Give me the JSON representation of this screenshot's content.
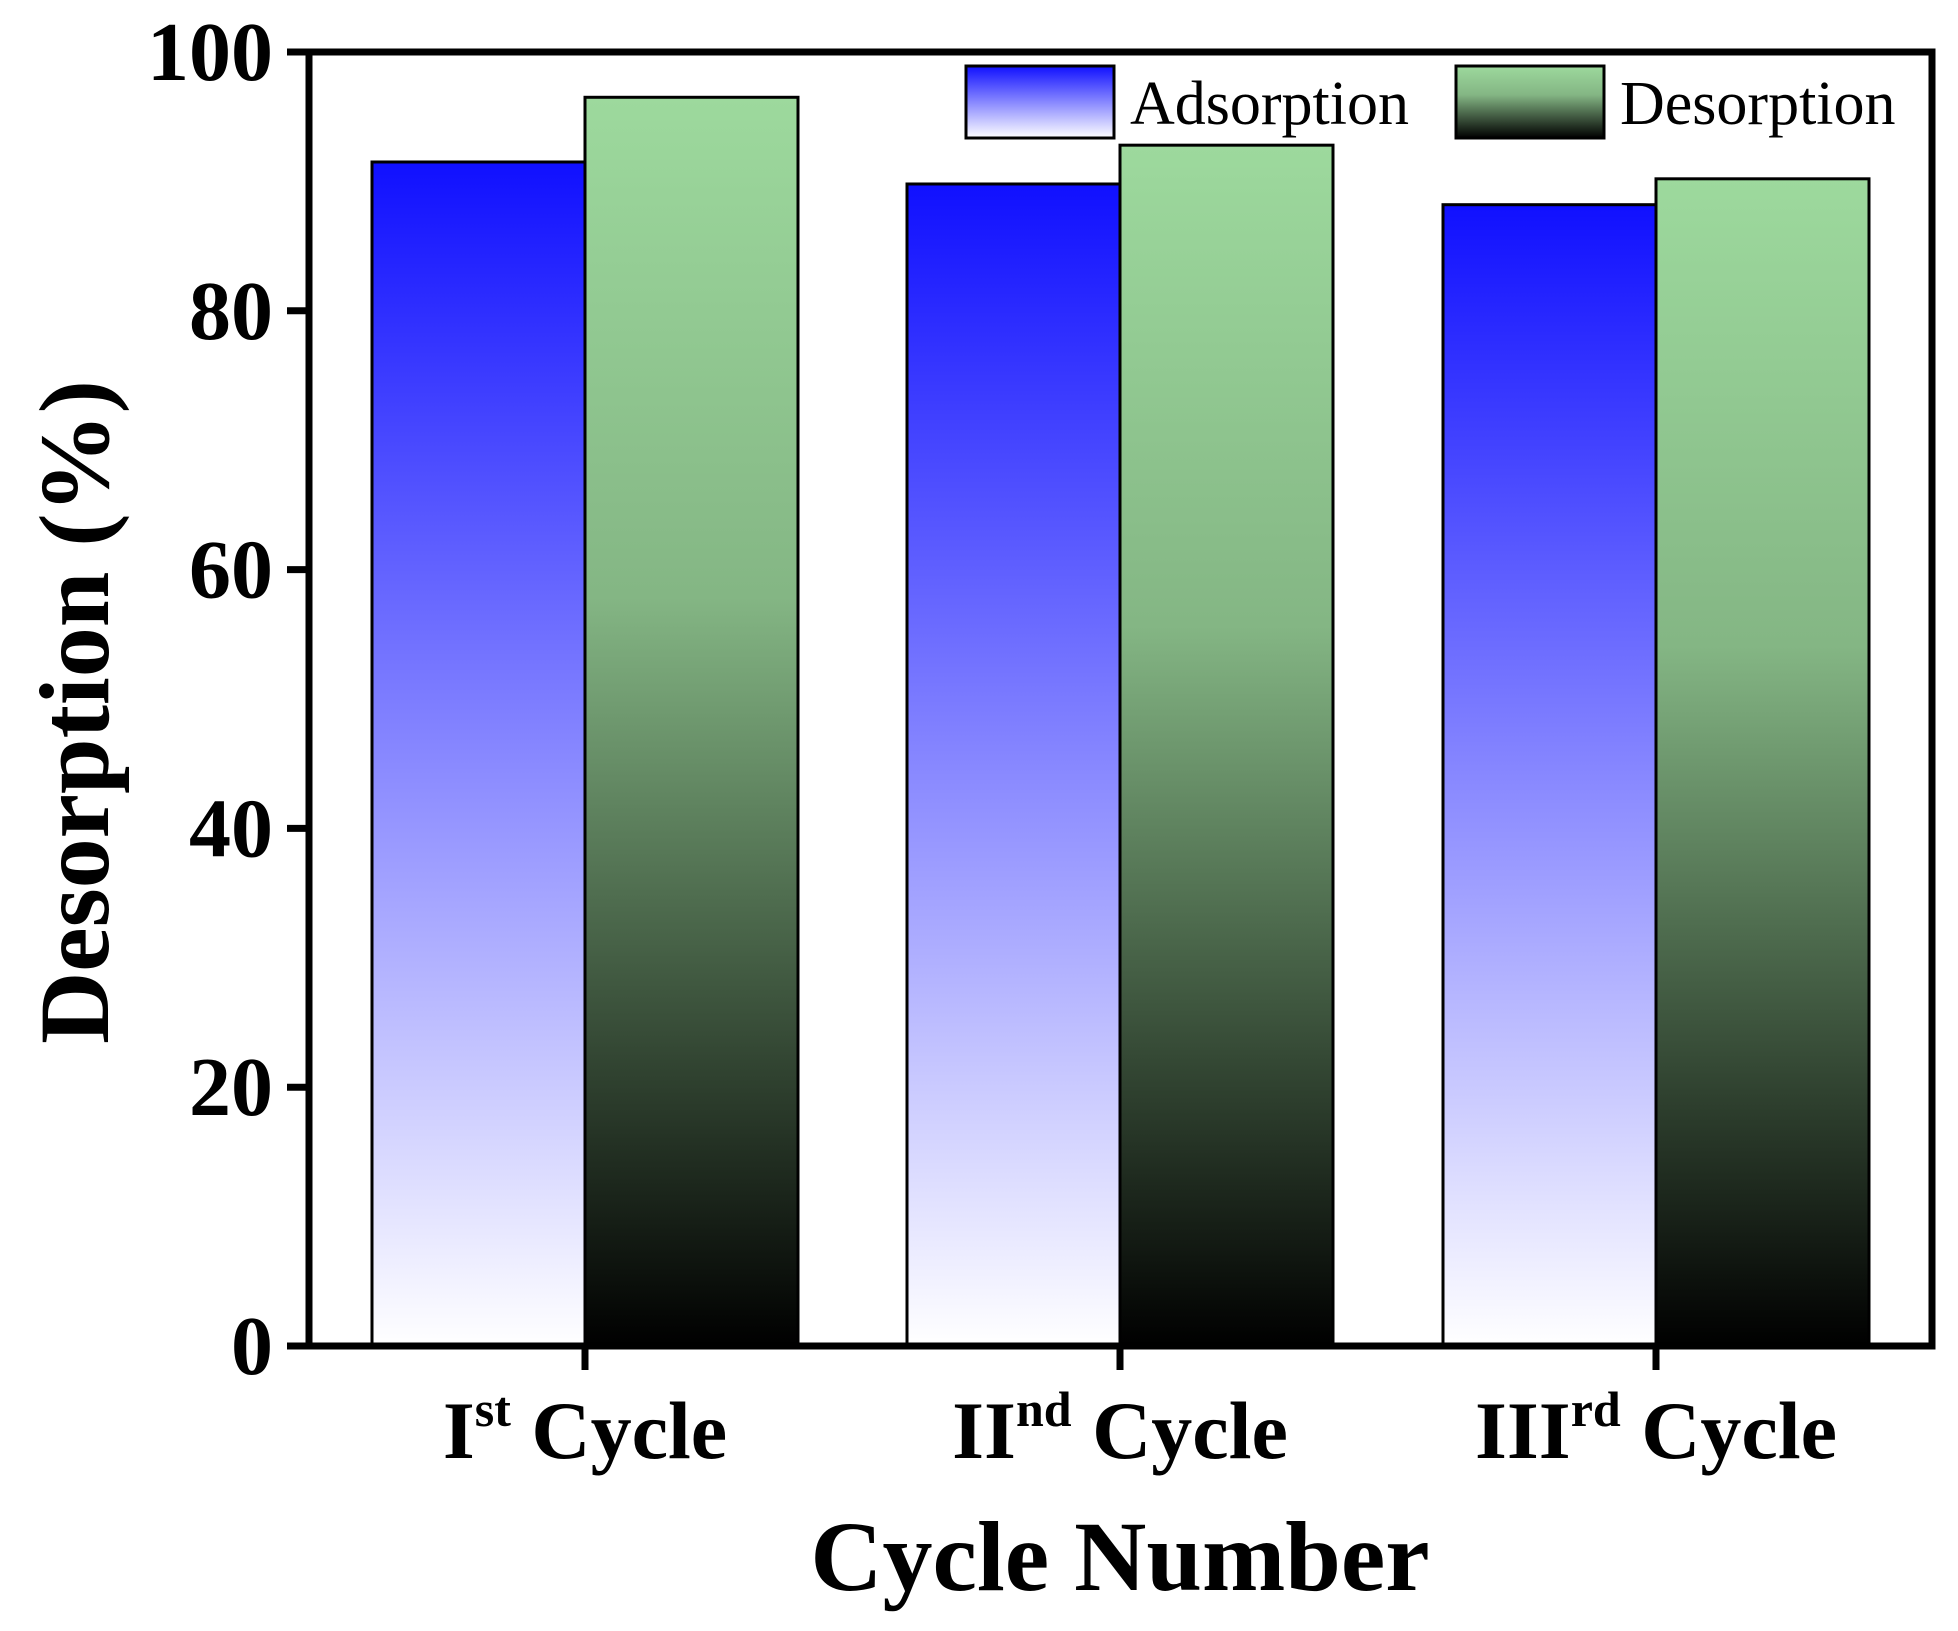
{
  "chart_data": {
    "type": "bar",
    "title": "",
    "xlabel": "Cycle Number",
    "ylabel": "Desorption (%)",
    "ylim": [
      0,
      100
    ],
    "yticks": [
      0,
      20,
      40,
      60,
      80,
      100
    ],
    "categories": [
      {
        "base": "I",
        "sup": "st",
        "rest": " Cycle"
      },
      {
        "base": "II",
        "sup": "nd",
        "rest": " Cycle"
      },
      {
        "base": "III",
        "sup": "rd",
        "rest": " Cycle"
      }
    ],
    "series": [
      {
        "name": "Adsorption",
        "values": [
          91.5,
          89.8,
          88.2
        ],
        "color_top": "#1010ff",
        "color_bottom": "#ffffff"
      },
      {
        "name": "Desorption",
        "values": [
          96.5,
          92.8,
          90.2
        ],
        "color_top": "#9dd99d",
        "color_bottom": "#000000"
      }
    ],
    "legend_position": "top-right",
    "grid": false
  }
}
